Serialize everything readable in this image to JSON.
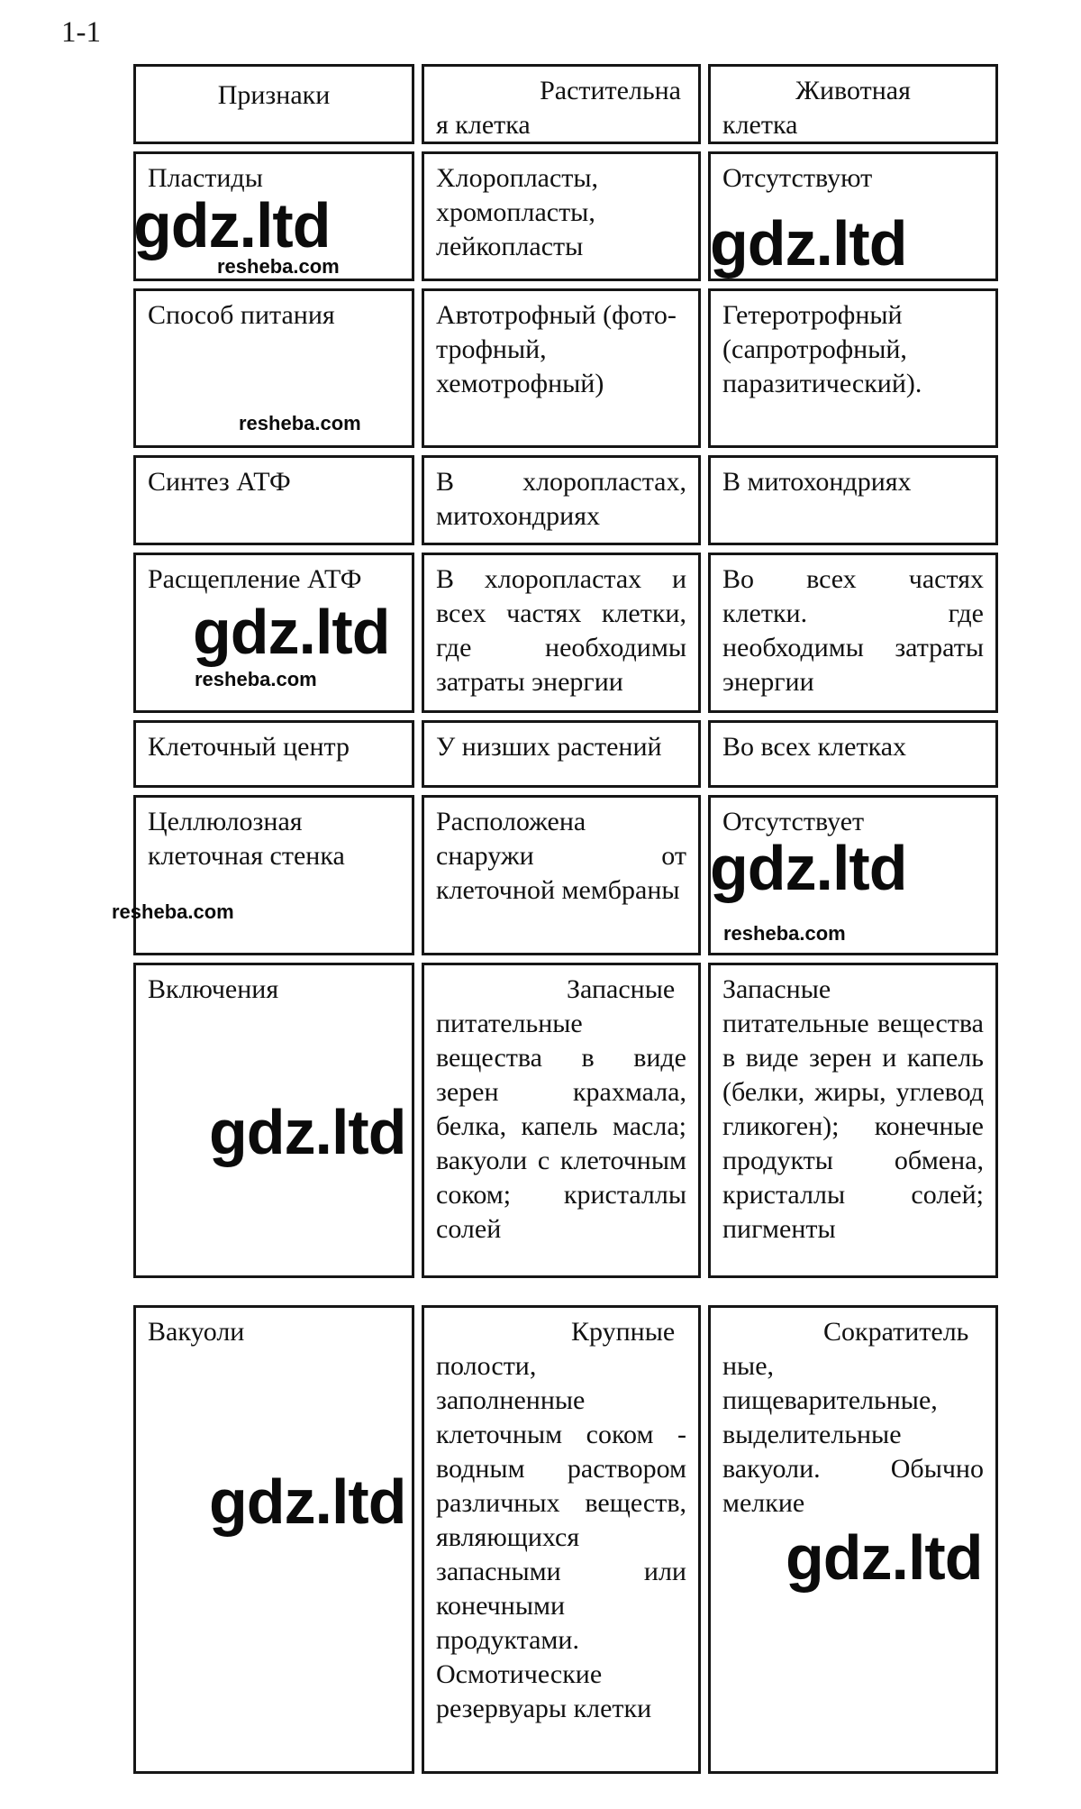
{
  "page": {
    "label": "1-1"
  },
  "watermarks": {
    "gdz": "gdz.ltd",
    "resheba": "resheba.com"
  },
  "table": {
    "headers": {
      "feature": "Признаки",
      "plant_line1": "Растительна",
      "plant_line2": "я клетка",
      "animal_line1": "Животная",
      "animal_line2": "клетка"
    },
    "rows": [
      {
        "feature": "Пластиды",
        "plant": "Хлоропласты, хромопласты, лейкопласты",
        "animal": "Отсутствуют"
      },
      {
        "feature": "Способ питания",
        "plant": "Автотрофный (фото-трофный, хемотрофный)",
        "animal": "Гетеротрофный (сапротрофный, паразитический)."
      },
      {
        "feature": "Синтез АТФ",
        "plant": "В хлоропластах, митохондриях",
        "animal": "В митохондриях"
      },
      {
        "feature": "Расщепление АТФ",
        "plant": "В хлоропластах и всех частях клетки, где необходимы затраты энергии",
        "animal": "Во всех частях клетки. где необходимы затраты энергии"
      },
      {
        "feature": "Клеточный центр",
        "plant": "У низших растений",
        "animal": "Во всех клетках"
      },
      {
        "feature": "Целлюлозная клеточная стенка",
        "plant": "Расположена снаружи от клеточной мембраны",
        "animal": "Отсутствует"
      },
      {
        "feature": "Включения",
        "plant": "Запасные питательные вещества в виде зерен крахмала, белка, капель масла; вакуоли с клеточным соком; кристаллы солей",
        "animal": "Запасные питательные вещества в виде зерен и капель (белки, жиры, углевод гликоген); конечные продукты обмена, кристаллы солей; пигменты"
      },
      {
        "feature": "Вакуоли",
        "plant": "Крупные полости, заполненные клеточным соком - водным раствором различных веществ, являющихся запасными или конечными продуктами. Осмотические резервуары клетки",
        "animal": "Сократитель ные, пищеварительные, выделительные вакуоли. Обычно мелкие"
      }
    ]
  }
}
